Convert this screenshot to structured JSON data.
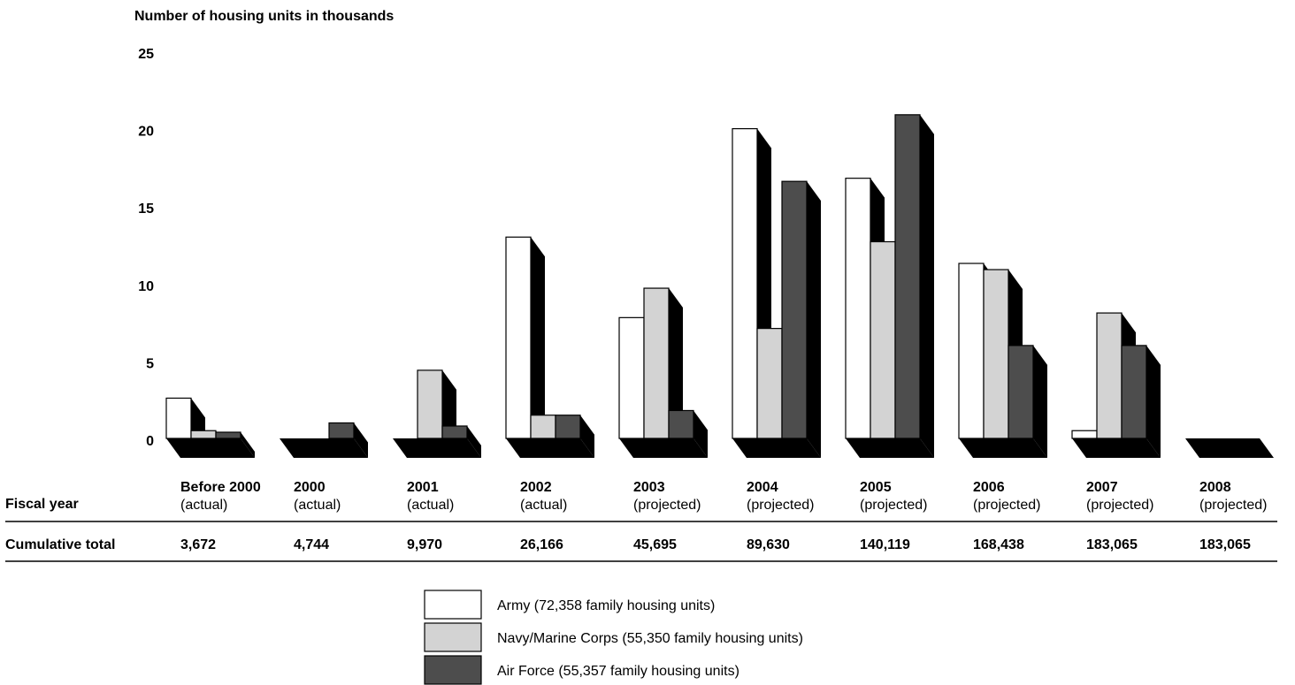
{
  "chart_data": {
    "type": "bar",
    "ylabel": "Number of housing units in thousands",
    "yticks": [
      0,
      5,
      10,
      15,
      20,
      25
    ],
    "ylim": [
      0,
      25
    ],
    "categories": [
      "Before 2000",
      "2000",
      "2001",
      "2002",
      "2003",
      "2004",
      "2005",
      "2006",
      "2007",
      "2008"
    ],
    "category_sublabels": [
      "(actual)",
      "(actual)",
      "(actual)",
      "(actual)",
      "(projected)",
      "(projected)",
      "(projected)",
      "(projected)",
      "(projected)",
      "(projected)"
    ],
    "series": [
      {
        "name": "Army (72,358 family housing units)",
        "color": "#ffffff",
        "values": [
          2.6,
          0,
          0,
          13.0,
          7.8,
          20.0,
          16.8,
          11.3,
          0.5,
          0
        ]
      },
      {
        "name": "Navy/Marine Corps (55,350 family housing units)",
        "color": "#d3d3d3",
        "values": [
          0.5,
          0,
          4.4,
          1.5,
          9.7,
          7.1,
          12.7,
          10.9,
          8.1,
          0
        ]
      },
      {
        "name": "Air Force (55,357 family housing units)",
        "color": "#4d4d4d",
        "values": [
          0.4,
          1.0,
          0.8,
          1.5,
          1.8,
          16.6,
          20.9,
          6.0,
          6.0,
          0
        ]
      }
    ],
    "table": {
      "row1_label": "Fiscal year",
      "row2_label": "Cumulative total",
      "cumulative_totals": [
        "3,672",
        "4,744",
        "9,970",
        "26,166",
        "45,695",
        "89,630",
        "140,119",
        "168,438",
        "183,065",
        "183,065"
      ]
    },
    "legend_position": "bottom-center",
    "grid": false
  }
}
